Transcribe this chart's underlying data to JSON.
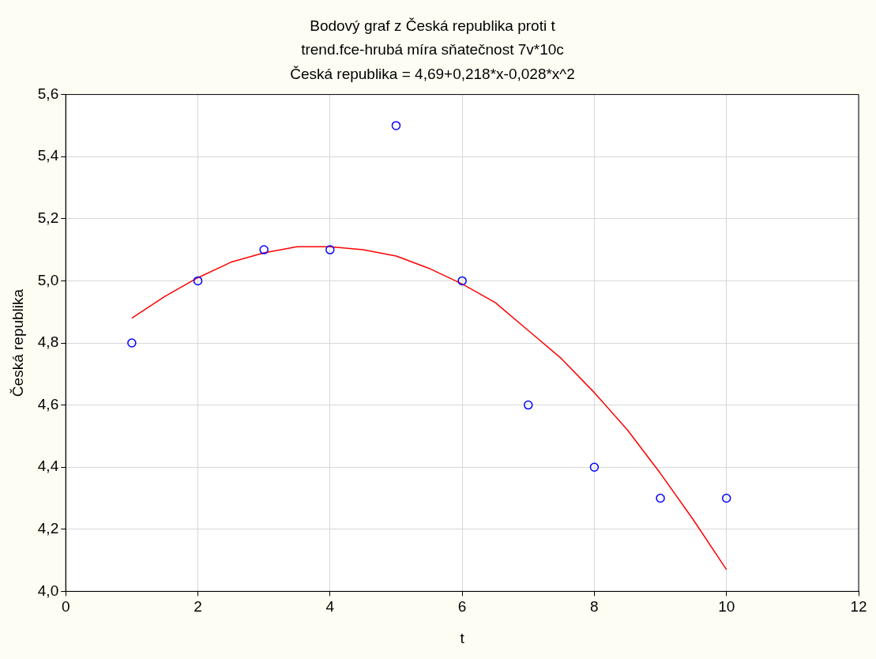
{
  "chart_data": {
    "type": "scatter",
    "title": "Bodový graf z Česká republika proti t",
    "subtitle": "trend.fce-hrubá míra sňatečnost 7v*10c",
    "annotations": [
      "Česká republika = 4,69+0,218*x-0,028*x^2"
    ],
    "xlabel": "t",
    "ylabel": "Česká republika",
    "xlim": [
      0,
      12
    ],
    "xticks": [
      0,
      2,
      4,
      6,
      8,
      10,
      12
    ],
    "ylim": [
      4.0,
      5.6
    ],
    "yticks": [
      {
        "value": 4.0,
        "label": "4,0"
      },
      {
        "value": 4.2,
        "label": "4,2"
      },
      {
        "value": 4.4,
        "label": "4,4"
      },
      {
        "value": 4.6,
        "label": "4,6"
      },
      {
        "value": 4.8,
        "label": "4,8"
      },
      {
        "value": 5.0,
        "label": "5,0"
      },
      {
        "value": 5.2,
        "label": "5,2"
      },
      {
        "value": 5.4,
        "label": "5,4"
      },
      {
        "value": 5.6,
        "label": "5,6"
      }
    ],
    "grid": true,
    "legend": false,
    "marker": "circle",
    "series": [
      {
        "color": "#0000ff",
        "x": [
          1,
          2,
          3,
          4,
          5,
          6,
          7,
          8,
          9,
          10
        ],
        "values": [
          4.8,
          5.0,
          5.1,
          5.1,
          5.5,
          5.0,
          4.6,
          4.4,
          4.3,
          4.3
        ]
      },
      {
        "type": "line",
        "color": "#ff0000",
        "marker": "none",
        "line_style": "solid",
        "x": [
          1,
          1.5,
          2,
          2.5,
          3,
          3.5,
          4,
          4.5,
          5,
          5.5,
          6,
          6.5,
          7,
          7.5,
          8,
          8.5,
          9,
          9.5,
          10
        ],
        "values": [
          4.88,
          4.95,
          5.01,
          5.06,
          5.09,
          5.11,
          5.11,
          5.1,
          5.08,
          5.04,
          4.99,
          4.93,
          4.84,
          4.75,
          4.64,
          4.52,
          4.38,
          4.23,
          4.07
        ]
      }
    ]
  }
}
